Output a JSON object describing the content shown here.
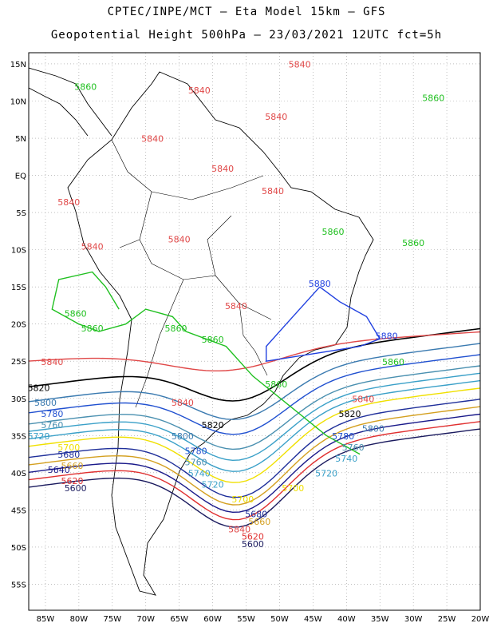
{
  "title": {
    "line1": "CPTEC/INPE/MCT –  Eta Model 15km – GFS",
    "line2": "Geopotential Height 500hPa – 23/03/2021 12UTC fct=5h"
  },
  "axes": {
    "lat_labels": [
      "15N",
      "10N",
      "5N",
      "EQ",
      "5S",
      "10S",
      "15S",
      "20S",
      "25S",
      "30S",
      "35S",
      "40S",
      "45S",
      "50S",
      "55S"
    ],
    "lon_labels": [
      "85W",
      "80W",
      "75W",
      "70W",
      "65W",
      "60W",
      "55W",
      "50W",
      "45W",
      "40W",
      "35W",
      "30W",
      "25W",
      "20W"
    ]
  },
  "contour_colors": {
    "5600": "#1a1a5e",
    "5620": "#e03030",
    "5640": "#1a1a8a",
    "5660": "#d4a020",
    "5680": "#1f2f9a",
    "5700": "#f0e000",
    "5720": "#3aa0c8",
    "5740": "#3aa0c8",
    "5760": "#4a90b0",
    "5780": "#2050d0",
    "5800": "#3a7ab0",
    "5820": "#000000",
    "5840": "#e04848",
    "5860": "#20c020",
    "5880": "#2040e0"
  },
  "contour_labels": [
    {
      "value": "5840",
      "lon": -47,
      "lat": 14.5
    },
    {
      "value": "5840",
      "lon": -62,
      "lat": 11
    },
    {
      "value": "5840",
      "lon": -50.5,
      "lat": 7.5
    },
    {
      "value": "5840",
      "lon": -69,
      "lat": 4.5
    },
    {
      "value": "5840",
      "lon": -58.5,
      "lat": 0.5
    },
    {
      "value": "5840",
      "lon": -51,
      "lat": -2.5
    },
    {
      "value": "5840",
      "lon": -81.5,
      "lat": -4
    },
    {
      "value": "5840",
      "lon": -78,
      "lat": -10
    },
    {
      "value": "5840",
      "lon": -65,
      "lat": -9
    },
    {
      "value": "5840",
      "lon": -56.5,
      "lat": -18
    },
    {
      "value": "5840",
      "lon": -84,
      "lat": -25.5
    },
    {
      "value": "5840",
      "lon": -64.5,
      "lat": -31
    },
    {
      "value": "5840",
      "lon": -37.5,
      "lat": -30.5
    },
    {
      "value": "5840",
      "lon": -56,
      "lat": -48
    },
    {
      "value": "5860",
      "lon": -79,
      "lat": 11.5
    },
    {
      "value": "5860",
      "lon": -27,
      "lat": 10
    },
    {
      "value": "5860",
      "lon": -42,
      "lat": -8
    },
    {
      "value": "5860",
      "lon": -30,
      "lat": -9.5
    },
    {
      "value": "5860",
      "lon": -80.5,
      "lat": -19
    },
    {
      "value": "5860",
      "lon": -78,
      "lat": -21
    },
    {
      "value": "5860",
      "lon": -65.5,
      "lat": -21
    },
    {
      "value": "5860",
      "lon": -60,
      "lat": -22.5
    },
    {
      "value": "5860",
      "lon": -33,
      "lat": -25.5
    },
    {
      "value": "5860",
      "lon": -50.5,
      "lat": -28.5
    },
    {
      "value": "5880",
      "lon": -44,
      "lat": -15
    },
    {
      "value": "5880",
      "lon": -34,
      "lat": -22
    },
    {
      "value": "5820",
      "lon": -86,
      "lat": -29
    },
    {
      "value": "5820",
      "lon": -60,
      "lat": -34
    },
    {
      "value": "5820",
      "lon": -39.5,
      "lat": -32.5
    },
    {
      "value": "5800",
      "lon": -85,
      "lat": -31
    },
    {
      "value": "5800",
      "lon": -64.5,
      "lat": -35.5
    },
    {
      "value": "5800",
      "lon": -36,
      "lat": -34.5
    },
    {
      "value": "5780",
      "lon": -84,
      "lat": -32.5
    },
    {
      "value": "5780",
      "lon": -62.5,
      "lat": -37.5
    },
    {
      "value": "5780",
      "lon": -40.5,
      "lat": -35.5
    },
    {
      "value": "5760",
      "lon": -84,
      "lat": -34
    },
    {
      "value": "5760",
      "lon": -62.5,
      "lat": -39
    },
    {
      "value": "5760",
      "lon": -39,
      "lat": -37
    },
    {
      "value": "5740",
      "lon": -62,
      "lat": -40.5
    },
    {
      "value": "5740",
      "lon": -40,
      "lat": -38.5
    },
    {
      "value": "5720",
      "lon": -86,
      "lat": -35.5
    },
    {
      "value": "5720",
      "lon": -60,
      "lat": -42
    },
    {
      "value": "5720",
      "lon": -43,
      "lat": -40.5
    },
    {
      "value": "5700",
      "lon": -81.5,
      "lat": -37
    },
    {
      "value": "5700",
      "lon": -55.5,
      "lat": -44
    },
    {
      "value": "5700",
      "lon": -48,
      "lat": -42.5
    },
    {
      "value": "5680",
      "lon": -81.5,
      "lat": -38
    },
    {
      "value": "5680",
      "lon": -53.5,
      "lat": -46
    },
    {
      "value": "5660",
      "lon": -81,
      "lat": -39.5
    },
    {
      "value": "5660",
      "lon": -53,
      "lat": -47
    },
    {
      "value": "5640",
      "lon": -83,
      "lat": -40
    },
    {
      "value": "5620",
      "lon": -81,
      "lat": -41.5
    },
    {
      "value": "5620",
      "lon": -54,
      "lat": -49
    },
    {
      "value": "5600",
      "lon": -80.5,
      "lat": -42.5
    },
    {
      "value": "5600",
      "lon": -54,
      "lat": -50
    }
  ],
  "contours": [
    {
      "value": "5860",
      "points": [
        [
          -38,
          -37.5
        ],
        [
          -43,
          -35
        ],
        [
          -54,
          -27
        ],
        [
          -58,
          -23
        ],
        [
          -64,
          -21
        ],
        [
          -66,
          -19
        ],
        [
          -70,
          -18
        ],
        [
          -73,
          -20
        ],
        [
          -77,
          -21
        ],
        [
          -80,
          -20
        ],
        [
          -84,
          -18
        ],
        [
          -83,
          -14
        ],
        [
          -78,
          -13
        ],
        [
          -76,
          -15
        ],
        [
          -74,
          -18
        ]
      ]
    },
    {
      "value": "5880",
      "points": [
        [
          -44,
          -15
        ],
        [
          -41,
          -17
        ],
        [
          -37,
          -19
        ],
        [
          -35,
          -22
        ],
        [
          -38,
          -23
        ],
        [
          -45,
          -24
        ],
        [
          -52,
          -25
        ],
        [
          -52,
          -23
        ],
        [
          -49,
          -20
        ],
        [
          -46,
          -17
        ],
        [
          -44,
          -15
        ]
      ]
    }
  ]
}
